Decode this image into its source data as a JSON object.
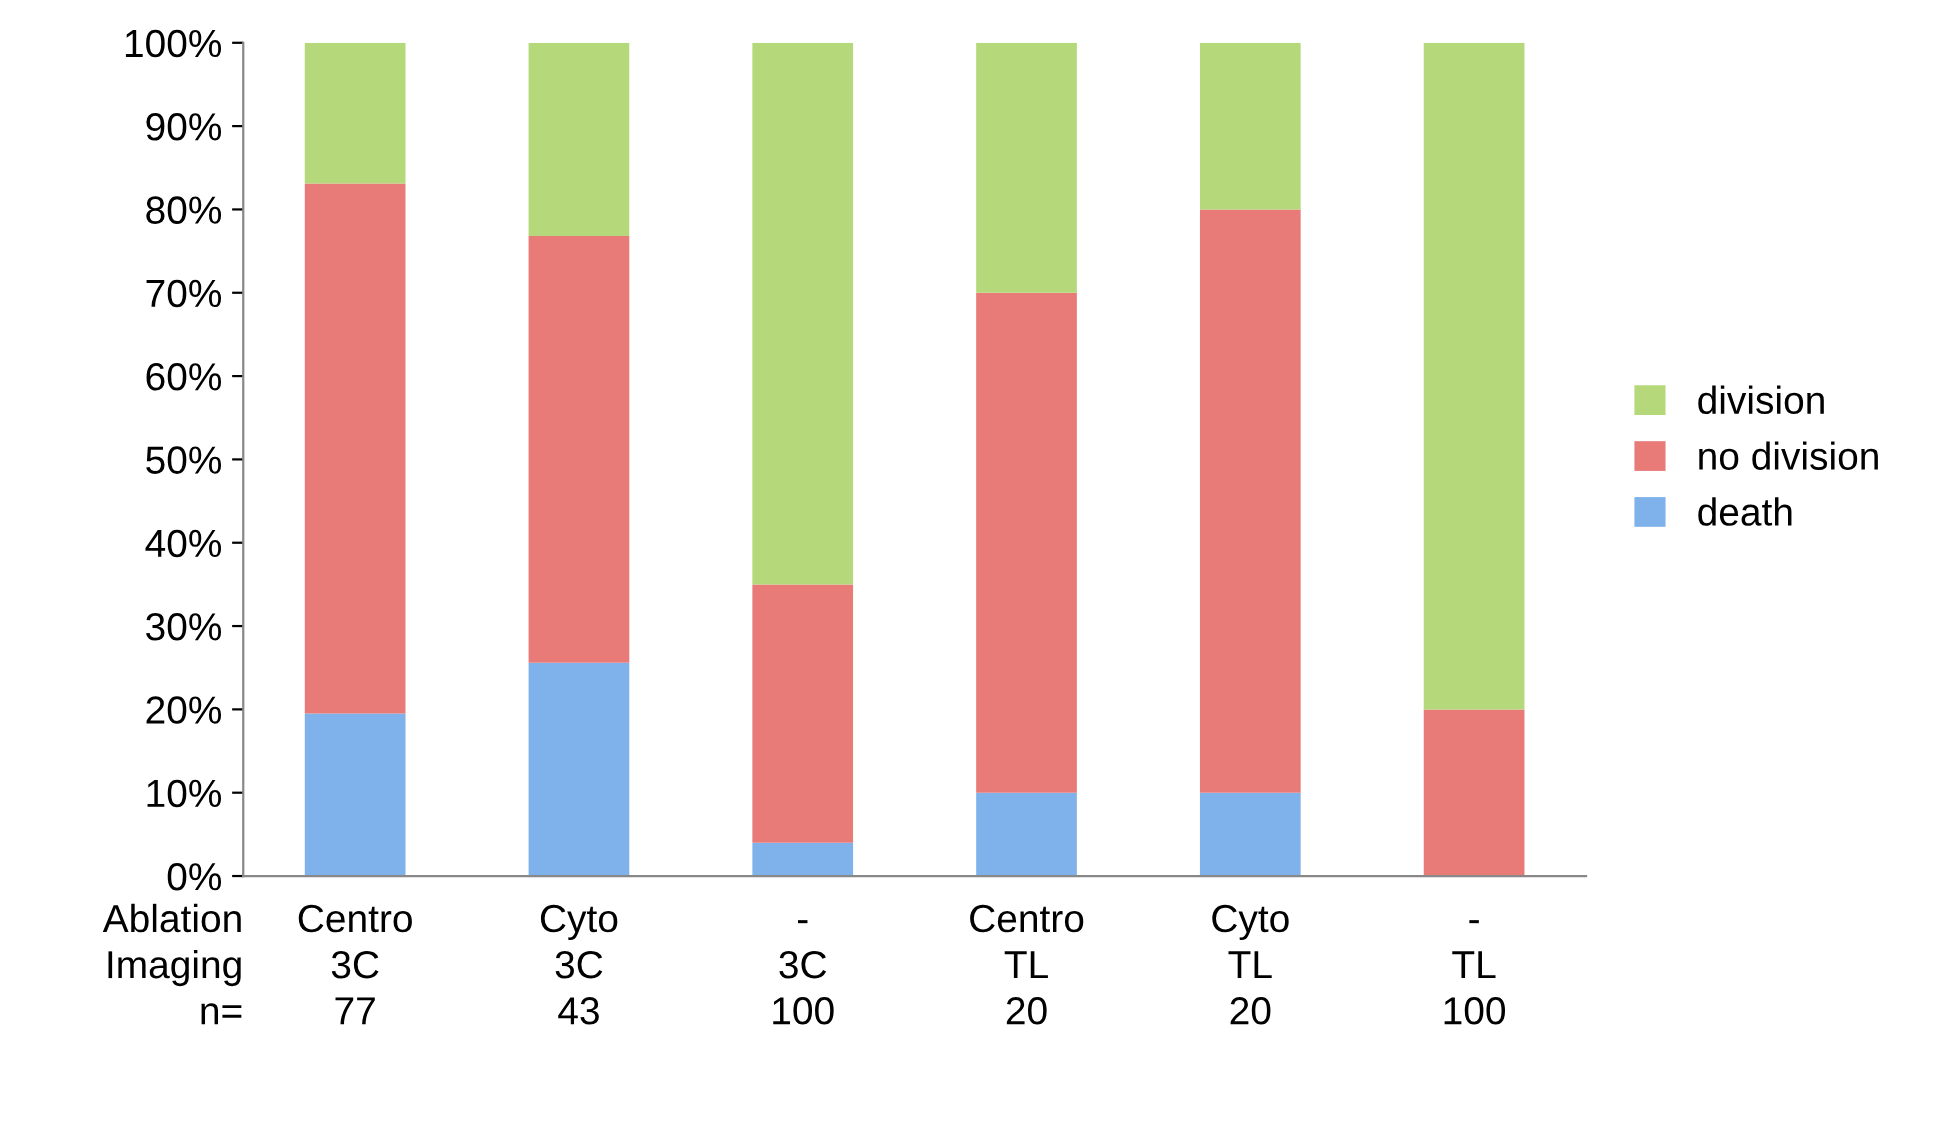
{
  "chart_data": {
    "type": "bar",
    "stacked": true,
    "categories": [
      "Centro\n3C\n77",
      "Cyto\n3C\n43",
      "-\n3C\n100",
      "Centro\nTL\n20",
      "Cyto\nTL\n20",
      "-\nTL\n100"
    ],
    "series": [
      {
        "name": "death",
        "color": "#7fb2ea",
        "values": [
          19.5,
          25.6,
          4,
          10,
          10,
          0
        ]
      },
      {
        "name": "no division",
        "color": "#e87b78",
        "values": [
          63.6,
          51.2,
          31,
          60,
          70,
          20
        ]
      },
      {
        "name": "division",
        "color": "#b5d97a",
        "values": [
          16.9,
          23.2,
          65,
          30,
          20,
          80
        ]
      }
    ],
    "ylim": [
      0,
      100
    ],
    "yticks": [
      {
        "value": 0,
        "label": "0%"
      },
      {
        "value": 10,
        "label": "10%"
      },
      {
        "value": 20,
        "label": "20%"
      },
      {
        "value": 30,
        "label": "30%"
      },
      {
        "value": 40,
        "label": "40%"
      },
      {
        "value": 50,
        "label": "50%"
      },
      {
        "value": 60,
        "label": "60%"
      },
      {
        "value": 70,
        "label": "70%"
      },
      {
        "value": 80,
        "label": "80%"
      },
      {
        "value": 90,
        "label": "90%"
      },
      {
        "value": 100,
        "label": "100%"
      }
    ],
    "annotations": [
      "Ablation\nImaging\nn="
    ],
    "legend": "right",
    "grid": false
  }
}
